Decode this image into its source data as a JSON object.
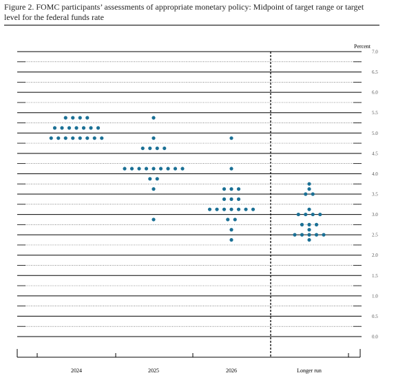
{
  "chart_data": {
    "type": "dot",
    "title": "Figure 2.  FOMC participants’ assessments of appropriate monetary policy: Midpoint of target range or target level for the federal funds rate",
    "ylabel": "Percent",
    "categories": [
      "2024",
      "2025",
      "2026",
      "Longer run"
    ],
    "values": [
      [
        5.375,
        5.375,
        5.375,
        5.375,
        5.125,
        5.125,
        5.125,
        5.125,
        5.125,
        5.125,
        5.125,
        4.875,
        4.875,
        4.875,
        4.875,
        4.875,
        4.875,
        4.875,
        4.875
      ],
      [
        5.375,
        4.875,
        4.625,
        4.625,
        4.625,
        4.625,
        4.125,
        4.125,
        4.125,
        4.125,
        4.125,
        4.125,
        4.125,
        4.125,
        4.125,
        3.875,
        3.875,
        3.625,
        2.875
      ],
      [
        4.875,
        4.125,
        3.625,
        3.625,
        3.625,
        3.375,
        3.375,
        3.375,
        3.125,
        3.125,
        3.125,
        3.125,
        3.125,
        3.125,
        3.125,
        2.875,
        2.875,
        2.625,
        2.375
      ],
      [
        3.75,
        3.625,
        3.5,
        3.5,
        3.125,
        3,
        3,
        3,
        3,
        2.75,
        2.75,
        2.75,
        2.625,
        2.5,
        2.5,
        2.5,
        2.5,
        2.5,
        2.375
      ]
    ],
    "color": "#1b7095",
    "ylim": [
      0,
      7
    ],
    "yticks": [
      {
        "value": 0,
        "label": "0.0"
      },
      {
        "value": 0.5,
        "label": "0.5"
      },
      {
        "value": 1,
        "label": "1.0"
      },
      {
        "value": 1.5,
        "label": "1.5"
      },
      {
        "value": 2,
        "label": "2.0"
      },
      {
        "value": 2.5,
        "label": "2.5"
      },
      {
        "value": 3,
        "label": "3.0"
      },
      {
        "value": 3.5,
        "label": "3.5"
      },
      {
        "value": 4,
        "label": "4.0"
      },
      {
        "value": 4.5,
        "label": "4.5"
      },
      {
        "value": 5,
        "label": "5.0"
      },
      {
        "value": 5.5,
        "label": "5.5"
      },
      {
        "value": 6,
        "label": "6.0"
      },
      {
        "value": 6.5,
        "label": "6.5"
      },
      {
        "value": 7,
        "label": "7.0"
      }
    ],
    "grid": true
  }
}
